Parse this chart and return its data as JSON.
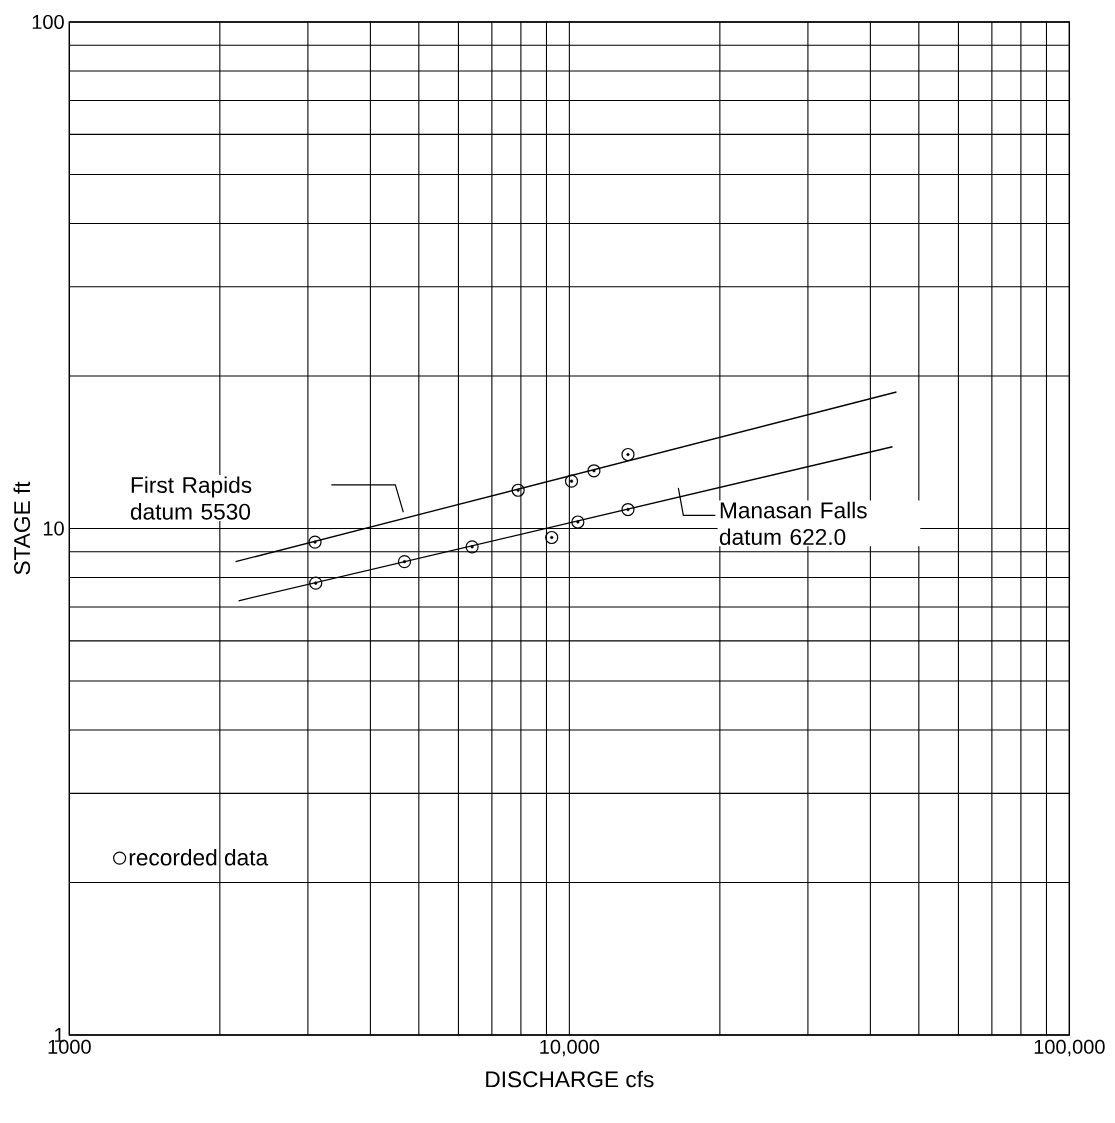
{
  "chart_data": {
    "type": "scatter",
    "xlabel": "DISCHARGE cfs",
    "ylabel": "STAGE ft",
    "log": "xy",
    "grid": true,
    "legend": "bottom left",
    "line_style": "solid",
    "xlim": [
      1000,
      100000
    ],
    "ylim": [
      1,
      100
    ],
    "xticks": [
      {
        "value": 1000,
        "label": "1000"
      },
      {
        "value": 10000,
        "label": "10,000"
      },
      {
        "value": 100000,
        "label": "100,000"
      }
    ],
    "yticks": [
      1,
      10,
      100
    ],
    "series": [
      {
        "name": "recorded data",
        "marker": "circle",
        "color": "#000000",
        "x": [
          3100,
          7900,
          10100,
          11200,
          13100,
          3110,
          4680,
          6390,
          9220,
          10400,
          13100
        ],
        "values": [
          9.4,
          11.9,
          12.4,
          13.0,
          14.0,
          7.8,
          8.6,
          9.2,
          9.6,
          10.3,
          10.9
        ]
      },
      {
        "type": "line",
        "marker": "none",
        "color": "#000000",
        "x": [
          2150,
          45100
        ],
        "values": [
          8.6,
          18.6
        ]
      },
      {
        "type": "line",
        "marker": "none",
        "color": "#000000",
        "x": [
          2180,
          44300
        ],
        "values": [
          7.2,
          14.5
        ]
      }
    ],
    "annotations": [
      "First Rapids datum 5530",
      "Manasan Falls datum 622.0"
    ]
  }
}
